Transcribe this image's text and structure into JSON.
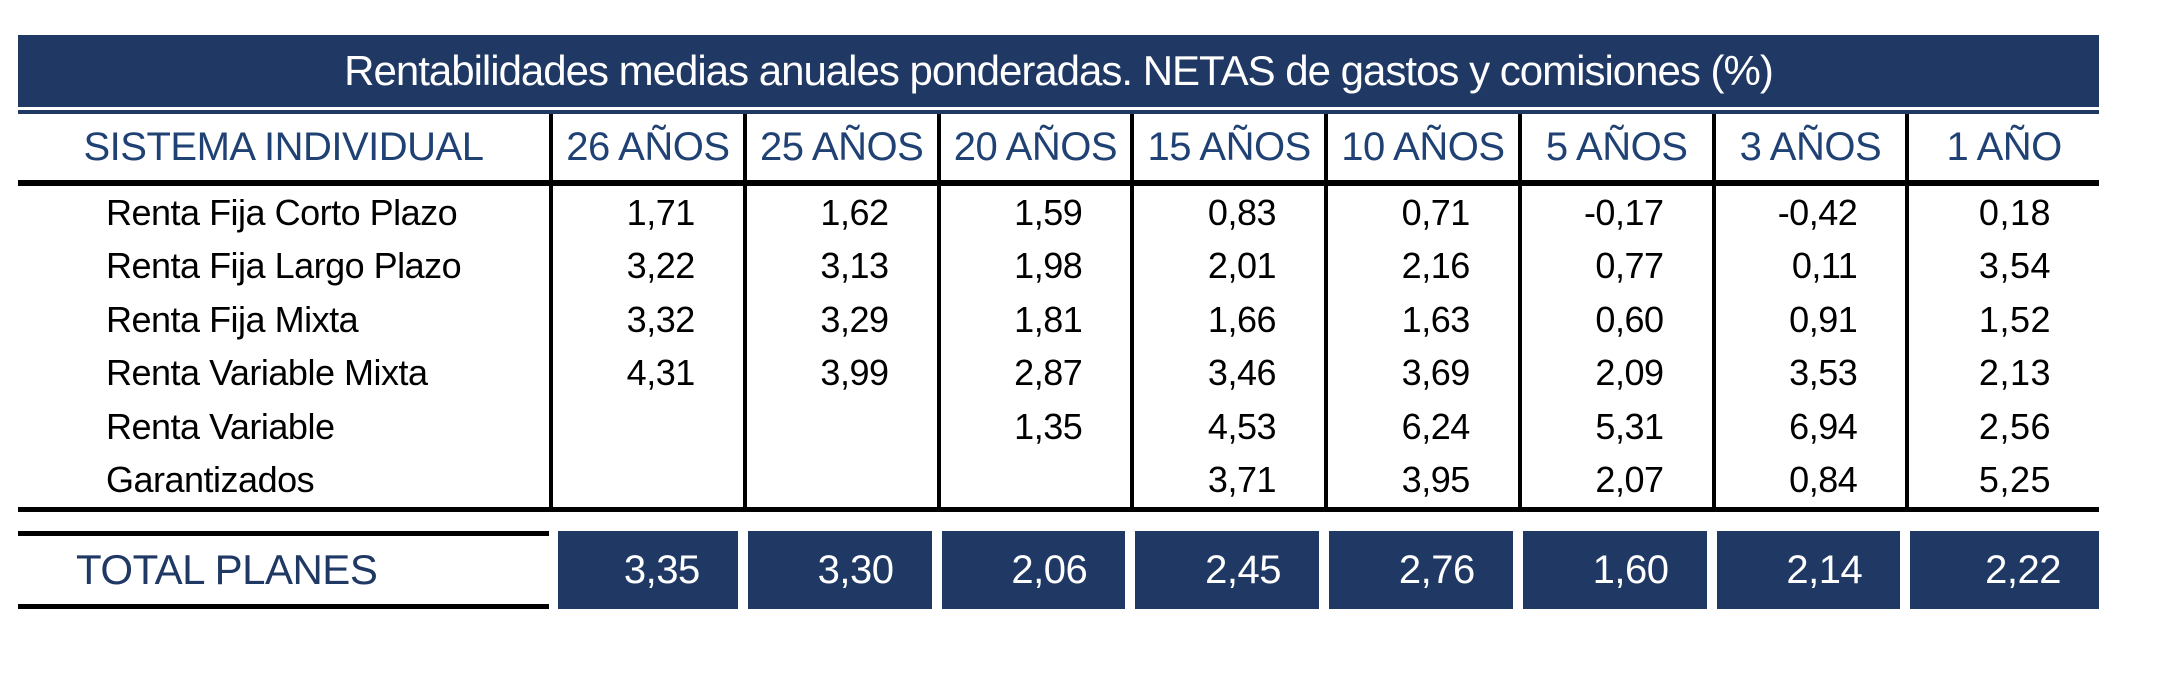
{
  "title": "Rentabilidades medias anuales ponderadas. NETAS de gastos y comisiones (%)",
  "table": {
    "label_header": "SISTEMA INDIVIDUAL",
    "year_headers": [
      "26 AÑOS",
      "25 AÑOS",
      "20 AÑOS",
      "15 AÑOS",
      "10 AÑOS",
      "5 AÑOS",
      "3 AÑOS",
      "1 AÑO"
    ],
    "rows": [
      {
        "label": "Renta Fija Corto Plazo",
        "values": [
          "1,71",
          "1,62",
          "1,59",
          "0,83",
          "0,71",
          "-0,17",
          "-0,42",
          "0,18"
        ]
      },
      {
        "label": "Renta Fija Largo Plazo",
        "values": [
          "3,22",
          "3,13",
          "1,98",
          "2,01",
          "2,16",
          "0,77",
          "0,11",
          "3,54"
        ]
      },
      {
        "label": "Renta Fija Mixta",
        "values": [
          "3,32",
          "3,29",
          "1,81",
          "1,66",
          "1,63",
          "0,60",
          "0,91",
          "1,52"
        ]
      },
      {
        "label": "Renta Variable Mixta",
        "values": [
          "4,31",
          "3,99",
          "2,87",
          "3,46",
          "3,69",
          "2,09",
          "3,53",
          "2,13"
        ]
      },
      {
        "label": "Renta Variable",
        "values": [
          "",
          "",
          "1,35",
          "4,53",
          "6,24",
          "5,31",
          "6,94",
          "2,56"
        ]
      },
      {
        "label": "Garantizados",
        "values": [
          "",
          "",
          "",
          "3,71",
          "3,95",
          "2,07",
          "0,84",
          "5,25"
        ]
      }
    ],
    "total": {
      "label": "TOTAL PLANES",
      "values": [
        "3,35",
        "3,30",
        "2,06",
        "2,45",
        "2,76",
        "1,60",
        "2,14",
        "2,22"
      ]
    }
  },
  "chart_data": {
    "type": "table",
    "title": "Rentabilidades medias anuales ponderadas. NETAS de gastos y comisiones (%)",
    "columns": [
      "SISTEMA INDIVIDUAL",
      "26 AÑOS",
      "25 AÑOS",
      "20 AÑOS",
      "15 AÑOS",
      "10 AÑOS",
      "5 AÑOS",
      "3 AÑOS",
      "1 AÑO"
    ],
    "rows": [
      [
        "Renta Fija Corto Plazo",
        1.71,
        1.62,
        1.59,
        0.83,
        0.71,
        -0.17,
        -0.42,
        0.18
      ],
      [
        "Renta Fija Largo Plazo",
        3.22,
        3.13,
        1.98,
        2.01,
        2.16,
        0.77,
        0.11,
        3.54
      ],
      [
        "Renta Fija Mixta",
        3.32,
        3.29,
        1.81,
        1.66,
        1.63,
        0.6,
        0.91,
        1.52
      ],
      [
        "Renta Variable Mixta",
        4.31,
        3.99,
        2.87,
        3.46,
        3.69,
        2.09,
        3.53,
        2.13
      ],
      [
        "Renta Variable",
        null,
        null,
        1.35,
        4.53,
        6.24,
        5.31,
        6.94,
        2.56
      ],
      [
        "Garantizados",
        null,
        null,
        null,
        3.71,
        3.95,
        2.07,
        0.84,
        5.25
      ],
      [
        "TOTAL PLANES",
        3.35,
        3.3,
        2.06,
        2.45,
        2.76,
        1.6,
        2.14,
        2.22
      ]
    ],
    "decimal_separator": ",",
    "units": "%"
  },
  "colors": {
    "navy": "#1f3864",
    "header_text": "#1f4173",
    "grid": "#000000"
  }
}
